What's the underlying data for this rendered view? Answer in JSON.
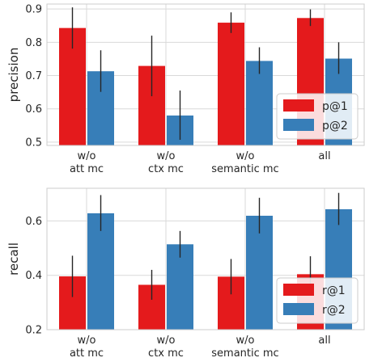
{
  "chart_data": [
    {
      "type": "bar",
      "categories": [
        "w/o\natt mc",
        "w/o\nctx mc",
        "w/o\nsemantic mc",
        "all"
      ],
      "ylabel": "precision",
      "ylim": [
        0.49,
        0.915
      ],
      "yticks": [
        0.5,
        0.6,
        0.7,
        0.8,
        0.9
      ],
      "yticklabels": [
        "0.5",
        "0.6",
        "0.7",
        "0.8",
        "0.9"
      ],
      "grid": true,
      "legend_position": "lower-right",
      "series": [
        {
          "name": "p@1",
          "color": "#e41a1c",
          "values": [
            0.843,
            0.729,
            0.859,
            0.873
          ],
          "err_low": [
            0.781,
            0.638,
            0.828,
            0.849
          ],
          "err_high": [
            0.905,
            0.82,
            0.89,
            0.899
          ]
        },
        {
          "name": "p@2",
          "color": "#377eb8",
          "values": [
            0.713,
            0.58,
            0.744,
            0.751
          ],
          "err_low": [
            0.651,
            0.507,
            0.705,
            0.705
          ],
          "err_high": [
            0.776,
            0.655,
            0.785,
            0.8
          ]
        }
      ]
    },
    {
      "type": "bar",
      "categories": [
        "w/o\natt mc",
        "w/o\nctx mc",
        "w/o\nsemantic mc",
        "all"
      ],
      "ylabel": "recall",
      "ylim": [
        0.2,
        0.72
      ],
      "yticks": [
        0.2,
        0.4,
        0.6
      ],
      "yticklabels": [
        "0.2",
        "0.4",
        "0.6"
      ],
      "grid": true,
      "legend_position": "lower-right",
      "series": [
        {
          "name": "r@1",
          "color": "#e41a1c",
          "values": [
            0.396,
            0.365,
            0.395,
            0.404
          ],
          "err_low": [
            0.32,
            0.31,
            0.33,
            0.336
          ],
          "err_high": [
            0.472,
            0.42,
            0.46,
            0.47
          ]
        },
        {
          "name": "r@2",
          "color": "#377eb8",
          "values": [
            0.628,
            0.514,
            0.619,
            0.643
          ],
          "err_low": [
            0.563,
            0.465,
            0.554,
            0.585
          ],
          "err_high": [
            0.695,
            0.563,
            0.685,
            0.703
          ]
        }
      ]
    }
  ]
}
